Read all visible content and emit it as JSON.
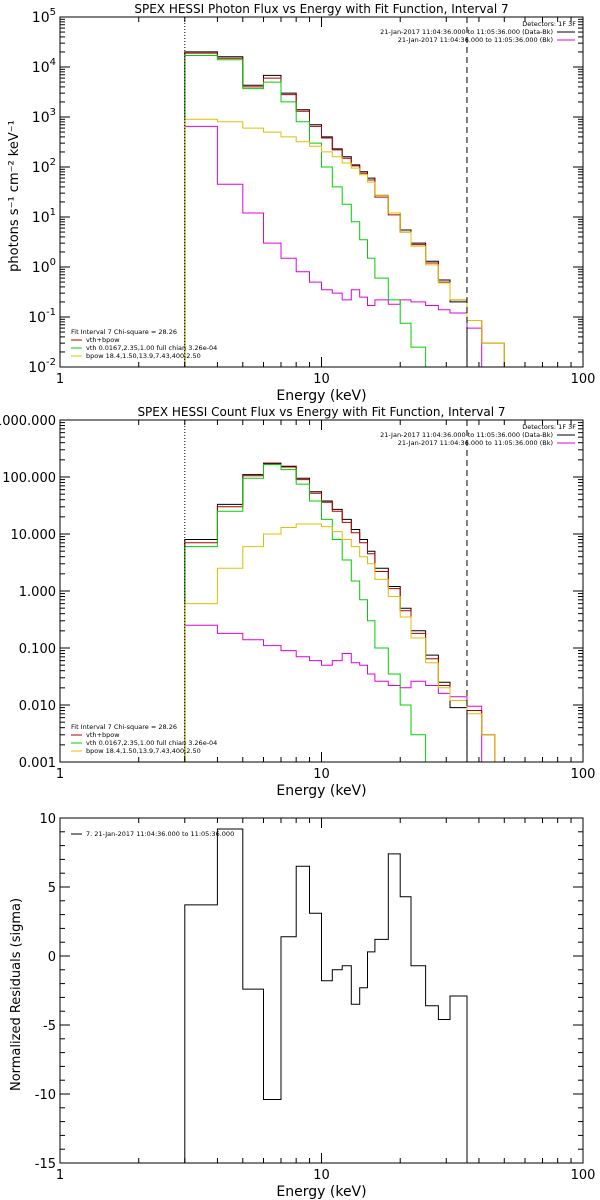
{
  "colors": {
    "data": "#000000",
    "bk": "#e000e0",
    "total": "#b00000",
    "vth": "#00d000",
    "bpow": "#e0c000"
  },
  "chart_data": [
    {
      "type": "line",
      "title": "SPEX HESSI Photon Flux vs Energy with Fit Function, Interval 7",
      "xlabel": "Energy (keV)",
      "ylabel": "photons s⁻¹ cm⁻² keV⁻¹",
      "xscale": "log",
      "yscale": "log",
      "xlim": [
        1,
        100
      ],
      "ylim": [
        0.01,
        100000
      ],
      "x_ticks": [
        {
          "v": 1,
          "l": "1"
        },
        {
          "v": 10,
          "l": "10"
        },
        {
          "v": 100,
          "l": "100"
        }
      ],
      "y_ticks": [
        {
          "v": 0.01,
          "b": "10",
          "e": "-2"
        },
        {
          "v": 0.1,
          "b": "10",
          "e": "-1"
        },
        {
          "v": 1,
          "b": "10",
          "e": "0"
        },
        {
          "v": 10,
          "b": "10",
          "e": "1"
        },
        {
          "v": 100,
          "b": "10",
          "e": "2"
        },
        {
          "v": 1000,
          "b": "10",
          "e": "3"
        },
        {
          "v": 10000,
          "b": "10",
          "e": "4"
        },
        {
          "v": 100000,
          "b": "10",
          "e": "5"
        }
      ],
      "vlines": [
        {
          "x": 3.0,
          "style": "dotted"
        },
        {
          "x": 36.0,
          "style": "dashed"
        }
      ],
      "header_lines": [
        "Detectors: 1F 3F",
        "21-Jan-2017 11:04:36.000 to 11:05:36.000 (Data-Bk)",
        "21-Jan-2017 11:04:36.000 to 11:05:36.000 (Bk)"
      ],
      "header_colors": [
        "none",
        "data",
        "bk"
      ],
      "legend": {
        "title": "Fit Interval  7    Chi-square = 28.26",
        "entries": [
          {
            "label": "vth+bpow",
            "color": "total"
          },
          {
            "label": "vth 0.0167,2.35,1.00  full chian 3.26e-04",
            "color": "vth"
          },
          {
            "label": "bpow 18.4,1.50,13.9,7.43,400,2.50",
            "color": "bpow"
          }
        ]
      },
      "edges": [
        3.0,
        4.0,
        5.0,
        6.0,
        7.0,
        8.0,
        9.0,
        10.0,
        11.0,
        12.0,
        13.0,
        14.0,
        15.0,
        16.0,
        18.0,
        20.0,
        22.0,
        25.0,
        28.0,
        31.0,
        36.0,
        41.0,
        50.0
      ],
      "series": [
        {
          "name": "Data-Bk",
          "color": "data",
          "values": [
            20000,
            16000,
            4300,
            6800,
            3000,
            1400,
            700,
            400,
            230,
            160,
            110,
            80,
            60,
            27,
            12,
            5.5,
            3,
            1.3,
            0.55,
            0.2
          ]
        },
        {
          "name": "Bk",
          "color": "bk",
          "values": [
            650,
            45,
            12,
            3,
            1.5,
            0.8,
            0.5,
            0.35,
            0.3,
            0.22,
            0.35,
            0.25,
            0.17,
            0.22,
            0.18,
            0.22,
            0.2,
            0.17,
            0.14,
            0.12,
            0.06
          ]
        },
        {
          "name": "vth+bpow",
          "color": "total",
          "values": [
            19000,
            15000,
            4000,
            6000,
            2800,
            1300,
            650,
            380,
            220,
            150,
            105,
            75,
            55,
            25,
            11,
            5,
            2.8,
            1.2,
            0.5,
            0.22,
            0.085,
            0.03
          ]
        },
        {
          "name": "vth",
          "color": "vth",
          "values": [
            17000,
            14000,
            3700,
            5000,
            2000,
            800,
            300,
            100,
            40,
            18,
            8,
            3.5,
            1.5,
            0.6,
            0.22,
            0.075,
            0.025,
            0.008
          ]
        },
        {
          "name": "bpow",
          "color": "bpow",
          "values": [
            900,
            800,
            600,
            500,
            400,
            320,
            260,
            200,
            160,
            120,
            95,
            70,
            50,
            27,
            12,
            5,
            2.6,
            1.1,
            0.48,
            0.22,
            0.085,
            0.03
          ]
        }
      ]
    },
    {
      "type": "line",
      "title": "SPEX HESSI Count Flux vs Energy with Fit Function, Interval 7",
      "xlabel": "Energy (keV)",
      "ylabel": "",
      "xscale": "log",
      "yscale": "log",
      "xlim": [
        1,
        100
      ],
      "ylim": [
        0.001,
        1000
      ],
      "x_ticks": [
        {
          "v": 1,
          "l": "1"
        },
        {
          "v": 10,
          "l": "10"
        },
        {
          "v": 100,
          "l": "100"
        }
      ],
      "y_ticks": [
        {
          "v": 0.001,
          "l": "0.001"
        },
        {
          "v": 0.01,
          "l": "0.010"
        },
        {
          "v": 0.1,
          "l": "0.100"
        },
        {
          "v": 1,
          "l": "1.000"
        },
        {
          "v": 10,
          "l": "10.000"
        },
        {
          "v": 100,
          "l": "100.000"
        },
        {
          "v": 1000,
          "l": "1000.000"
        }
      ],
      "vlines": [
        {
          "x": 3.0,
          "style": "dotted"
        },
        {
          "x": 36.0,
          "style": "dashed"
        }
      ],
      "header_lines": [
        "Detectors: 1F 3F",
        "21-Jan-2017 11:04:36.000 to 11:05:36.000 (Data-Bk)",
        "21-Jan-2017 11:04:36.000 to 11:05:36.000 (Bk)"
      ],
      "header_colors": [
        "none",
        "data",
        "bk"
      ],
      "legend": {
        "title": "Fit Interval  7    Chi-square = 28.26",
        "entries": [
          {
            "label": "vth+bpow",
            "color": "total"
          },
          {
            "label": "vth 0.0167,2.35,1.00  full chian 3.26e-04",
            "color": "vth"
          },
          {
            "label": "bpow 18.4,1.50,13.9,7.43,400,2.50",
            "color": "bpow"
          }
        ]
      },
      "edges": [
        3.0,
        4.0,
        5.0,
        6.0,
        7.0,
        8.0,
        9.0,
        10.0,
        11.0,
        12.0,
        13.0,
        14.0,
        15.0,
        16.0,
        18.0,
        20.0,
        22.0,
        25.0,
        28.0,
        31.0,
        36.0,
        41.0,
        46.0,
        52.0
      ],
      "series": [
        {
          "name": "Data-Bk",
          "color": "data",
          "values": [
            8,
            33,
            110,
            175,
            155,
            95,
            55,
            38,
            27,
            18,
            12,
            8,
            5,
            2.5,
            1.2,
            0.5,
            0.2,
            0.075,
            0.025,
            0.009
          ]
        },
        {
          "name": "Bk",
          "color": "bk",
          "values": [
            0.25,
            0.18,
            0.14,
            0.11,
            0.09,
            0.07,
            0.06,
            0.05,
            0.06,
            0.08,
            0.055,
            0.05,
            0.035,
            0.026,
            0.022,
            0.02,
            0.026,
            0.022,
            0.016,
            0.014,
            0.0095
          ]
        },
        {
          "name": "vth+bpow",
          "color": "total",
          "values": [
            7,
            30,
            105,
            170,
            150,
            90,
            52,
            36,
            25,
            16,
            10.5,
            7,
            4.5,
            2.2,
            1.1,
            0.45,
            0.18,
            0.065,
            0.022,
            0.012,
            0.008,
            0.003,
            0.001
          ]
        },
        {
          "name": "vth",
          "color": "vth",
          "values": [
            6,
            25,
            95,
            165,
            135,
            75,
            38,
            18,
            8,
            3.5,
            1.5,
            0.7,
            0.3,
            0.1,
            0.035,
            0.01,
            0.003,
            0.001
          ]
        },
        {
          "name": "bpow",
          "color": "bpow",
          "values": [
            0.6,
            2.5,
            6,
            10,
            13,
            15,
            15,
            13.5,
            11,
            8,
            6,
            4,
            3,
            1.6,
            0.8,
            0.35,
            0.15,
            0.055,
            0.02,
            0.012,
            0.007,
            0.003,
            0.001
          ]
        }
      ]
    },
    {
      "type": "line",
      "title": "",
      "xlabel": "Energy (keV)",
      "ylabel": "Normalized Residuals (sigma)",
      "xscale": "log",
      "yscale": "linear",
      "xlim": [
        1,
        100
      ],
      "ylim": [
        -15,
        10
      ],
      "x_ticks": [
        {
          "v": 1,
          "l": "1"
        },
        {
          "v": 10,
          "l": "10"
        },
        {
          "v": 100,
          "l": "100"
        }
      ],
      "y_ticks": [
        {
          "v": -15,
          "l": "-15"
        },
        {
          "v": -10,
          "l": "-10"
        },
        {
          "v": -5,
          "l": "-5"
        },
        {
          "v": 0,
          "l": "0"
        },
        {
          "v": 5,
          "l": "5"
        },
        {
          "v": 10,
          "l": "10"
        }
      ],
      "vlines": [],
      "legend": {
        "title": "",
        "entries": [
          {
            "label": "7. 21-Jan-2017 11:04:36.000 to 11:05:36.000",
            "color": "data"
          }
        ]
      },
      "edges": [
        3.0,
        4.0,
        5.0,
        6.0,
        7.0,
        8.0,
        9.0,
        10.0,
        11.0,
        12.0,
        13.0,
        14.0,
        15.0,
        16.0,
        18.0,
        20.0,
        22.0,
        25.0,
        28.0,
        31.0,
        36.0
      ],
      "series": [
        {
          "name": "",
          "color": "data",
          "values": [
            3.7,
            9.2,
            -2.4,
            -10.4,
            1.4,
            6.5,
            3.1,
            -1.8,
            -1.0,
            -0.7,
            -3.5,
            -2.3,
            0.3,
            1.2,
            7.4,
            4.3,
            -0.7,
            -3.6,
            -4.6,
            -2.9
          ]
        }
      ]
    }
  ]
}
